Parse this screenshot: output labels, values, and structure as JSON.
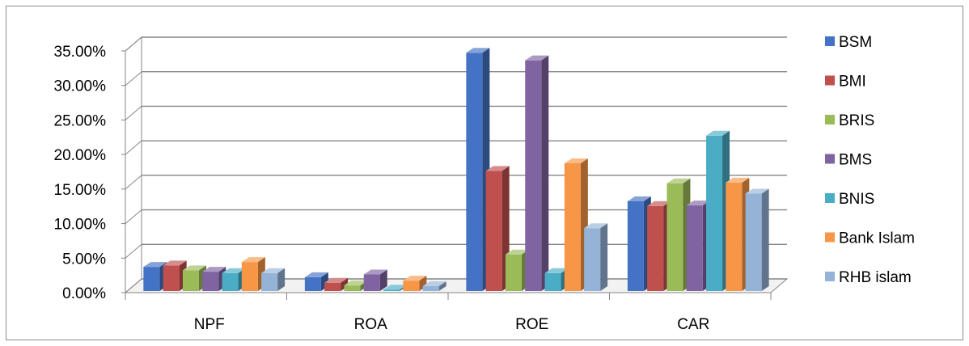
{
  "chart_data": {
    "type": "bar",
    "title": "",
    "xlabel": "",
    "ylabel": "",
    "categories": [
      "NPF",
      "ROA",
      "ROE",
      "CAR"
    ],
    "ylim": [
      0,
      0.35
    ],
    "y_ticks": [
      "0.00%",
      "5.00%",
      "10.00%",
      "15.00%",
      "20.00%",
      "25.00%",
      "30.00%",
      "35.00%"
    ],
    "grid": true,
    "legend_position": "right",
    "series": [
      {
        "name": "BSM",
        "color": "#4472C4",
        "values": [
          0.035,
          0.02,
          0.345,
          0.13
        ]
      },
      {
        "name": "BMI",
        "color": "#C0504D",
        "values": [
          0.037,
          0.012,
          0.174,
          0.123
        ]
      },
      {
        "name": "BRIS",
        "color": "#9BBB59",
        "values": [
          0.03,
          0.008,
          0.053,
          0.156
        ]
      },
      {
        "name": "BMS",
        "color": "#8064A2",
        "values": [
          0.028,
          0.024,
          0.334,
          0.124
        ]
      },
      {
        "name": "BNIS",
        "color": "#4BACC6",
        "values": [
          0.026,
          0.002,
          0.026,
          0.225
        ]
      },
      {
        "name": "Bank Islam",
        "color": "#F79646",
        "values": [
          0.042,
          0.015,
          0.185,
          0.157
        ]
      },
      {
        "name": "RHB islam",
        "color": "#95B3D7",
        "values": [
          0.026,
          0.007,
          0.091,
          0.141
        ]
      }
    ]
  }
}
